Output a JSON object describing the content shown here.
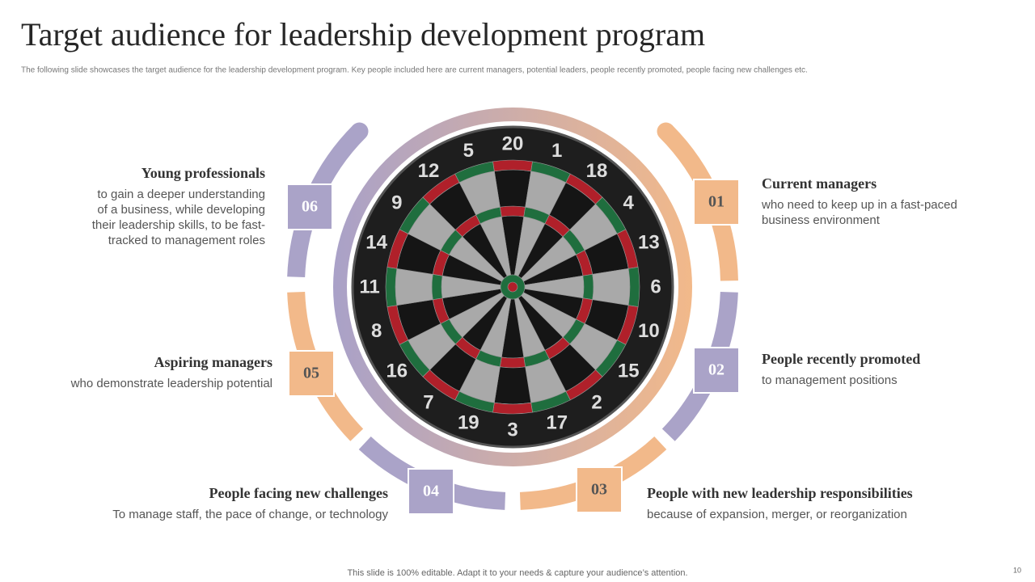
{
  "header": {
    "title": "Target audience for leadership development program",
    "subtitle": "The following slide showcases the target audience for the leadership development program. Key people included here are current managers, potential leaders, people recently promoted, people facing new challenges etc."
  },
  "items": [
    {
      "number": "01",
      "heading": "Current managers",
      "lines": [
        "who need to keep up in a fast-paced",
        "business environment"
      ]
    },
    {
      "number": "02",
      "heading": "People recently promoted",
      "lines": [
        "to management positions"
      ]
    },
    {
      "number": "03",
      "heading": "People with new leadership responsibilities",
      "lines": [
        "because of expansion, merger, or reorganization"
      ]
    },
    {
      "number": "04",
      "heading": "People facing new challenges",
      "lines": [
        "To manage staff, the pace of change, or technology"
      ]
    },
    {
      "number": "05",
      "heading": "Aspiring managers",
      "lines": [
        "who demonstrate leadership potential"
      ]
    },
    {
      "number": "06",
      "heading": "Young professionals",
      "lines": [
        "to gain a deeper understanding",
        "of a business, while developing",
        "their leadership skills, to be fast-",
        "tracked to management roles"
      ]
    }
  ],
  "dartboard": {
    "numbers": [
      "20",
      "1",
      "18",
      "4",
      "13",
      "6",
      "10",
      "15",
      "2",
      "17",
      "3",
      "19",
      "7",
      "16",
      "8",
      "11",
      "14",
      "9",
      "12",
      "5"
    ]
  },
  "footer": {
    "note": "This slide is 100% editable. Adapt it to your needs & capture your audience’s attention.",
    "page": "10"
  }
}
